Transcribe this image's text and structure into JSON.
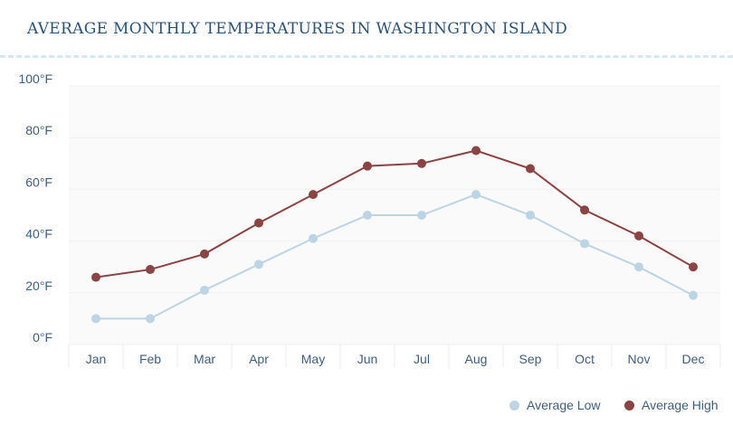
{
  "chart_data": {
    "type": "line",
    "title": "AVERAGE MONTHLY TEMPERATURES IN WASHINGTON ISLAND",
    "categories": [
      "Jan",
      "Feb",
      "Mar",
      "Apr",
      "May",
      "Jun",
      "Jul",
      "Aug",
      "Sep",
      "Oct",
      "Nov",
      "Dec"
    ],
    "ylim": [
      0,
      100
    ],
    "yticks": [
      "0°F",
      "20°F",
      "40°F",
      "60°F",
      "80°F",
      "100°F"
    ],
    "grid": true,
    "legend_position": "bottom-right",
    "series": [
      {
        "name": "Average Low",
        "color": "#bcd4e3",
        "values": [
          10,
          10,
          21,
          31,
          41,
          50,
          50,
          58,
          50,
          39,
          30,
          19
        ]
      },
      {
        "name": "Average High",
        "color": "#8a4444",
        "values": [
          26,
          29,
          35,
          47,
          58,
          69,
          70,
          75,
          68,
          52,
          42,
          30
        ]
      }
    ]
  }
}
